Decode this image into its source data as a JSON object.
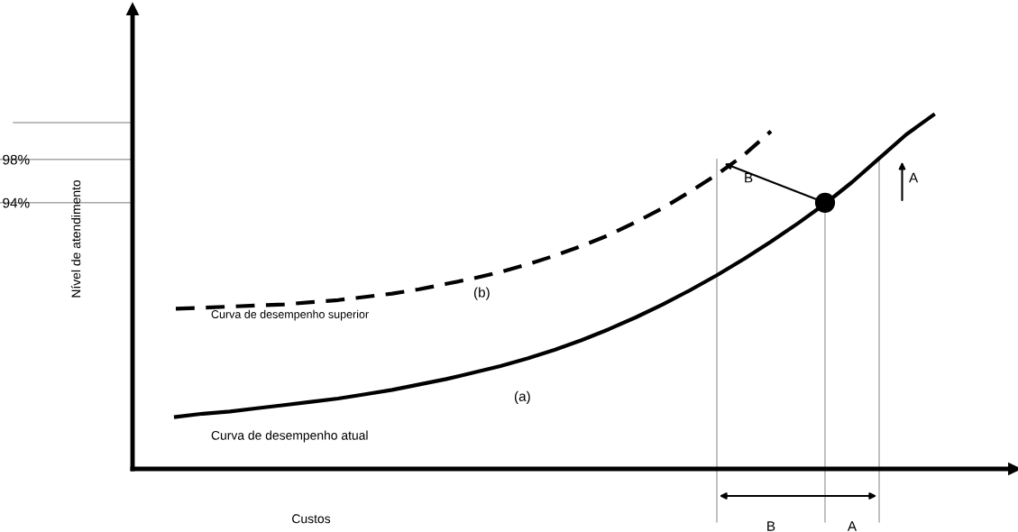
{
  "chart_data": {
    "type": "line",
    "xlabel": "Custos",
    "ylabel": "Nível de atendimento",
    "categories": [
      null,
      null,
      null,
      null,
      null,
      null,
      null,
      null,
      null,
      null,
      null,
      null,
      null,
      null,
      null,
      null,
      null,
      null,
      null,
      null,
      null,
      null,
      null,
      null,
      null,
      null,
      null,
      null,
      null
    ],
    "ylim": [
      69.4,
      111.9
    ],
    "yticks": [
      {
        "value": 94,
        "label": "94%"
      },
      {
        "value": 98,
        "label": "98%"
      }
    ],
    "grid": "y",
    "series": [
      {
        "color": "#000000",
        "line_style": "solid",
        "values": [
          74.2,
          74.5,
          74.7,
          75.0,
          75.3,
          75.6,
          75.9,
          76.3,
          76.7,
          77.2,
          77.7,
          78.3,
          78.9,
          79.6,
          80.4,
          81.3,
          82.3,
          83.4,
          84.6,
          85.9,
          87.3,
          88.8,
          90.4,
          92.1,
          93.9,
          95.9,
          98.1,
          100.3,
          102.1
        ]
      },
      {
        "color": "#000000",
        "line_style": "dashed",
        "values": [
          84.2,
          84.3,
          84.4,
          84.5,
          84.6,
          84.8,
          85.0,
          85.3,
          85.6,
          86.0,
          86.5,
          87.0,
          87.6,
          88.3,
          89.1,
          90.0,
          91.0,
          92.2,
          93.5,
          95.0,
          96.6,
          98.4,
          100.6,
          null,
          null,
          null,
          null,
          null,
          null
        ]
      },
      {
        "type": "scatter",
        "color": "#000000",
        "marker": "circle",
        "values": [
          null,
          null,
          null,
          null,
          null,
          null,
          null,
          null,
          null,
          null,
          null,
          null,
          null,
          null,
          null,
          null,
          null,
          null,
          null,
          null,
          null,
          null,
          null,
          null,
          94,
          null,
          null,
          null,
          null
        ]
      }
    ],
    "ref_lines": [
      {
        "axis": "y",
        "value": 101.4,
        "color": "#a6a6a6"
      }
    ],
    "annotations": [
      "(b)",
      "Curva de desempenho superior",
      "(a)",
      "Curva de desempenho atual",
      "B",
      "A",
      "B",
      "A"
    ]
  }
}
